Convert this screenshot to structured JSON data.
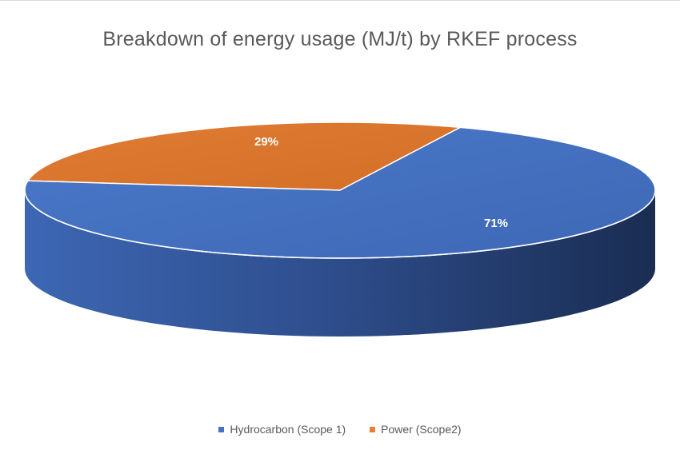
{
  "chart_data": {
    "type": "pie",
    "title": "Breakdown of energy usage (MJ/t) by RKEF process",
    "categories": [
      "Hydrocarbon (Scope 1)",
      "Power (Scope2)"
    ],
    "values": [
      71,
      29
    ],
    "labels": [
      "71%",
      "29%"
    ],
    "colors": [
      "#4472c4",
      "#ed7d31"
    ],
    "style": "3d-pie",
    "legend": "bottom"
  }
}
